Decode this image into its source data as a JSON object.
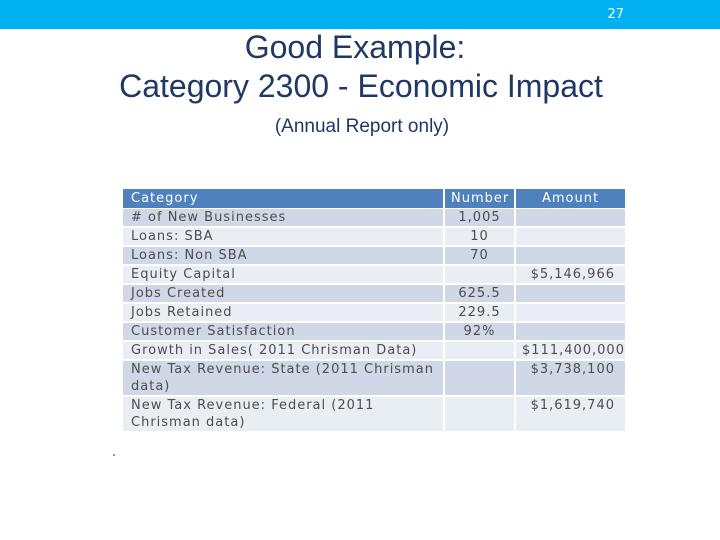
{
  "slide_number": "27",
  "title_line1": "Good Example:",
  "title_line2": "Category 2300 - Economic Impact",
  "subtitle": "(Annual Report only)",
  "table": {
    "headers": [
      "Category",
      "Number",
      "Amount"
    ],
    "rows": [
      [
        "# of New Businesses",
        "1,005",
        ""
      ],
      [
        "Loans: SBA",
        "10",
        ""
      ],
      [
        "Loans: Non SBA",
        "70",
        ""
      ],
      [
        "Equity Capital",
        "",
        "$5,146,966"
      ],
      [
        "Jobs Created",
        "625.5",
        ""
      ],
      [
        "Jobs Retained",
        "229.5",
        ""
      ],
      [
        "Customer Satisfaction",
        "92%",
        ""
      ],
      [
        "Growth in Sales( 2011 Chrisman Data)",
        "",
        "$111,400,000"
      ],
      [
        "New Tax Revenue: State (2011 Chrisman data)",
        "",
        "$3,738,100"
      ],
      [
        "New Tax Revenue: Federal (2011 Chrisman data)",
        "",
        "$1,619,740"
      ]
    ]
  },
  "colors": {
    "topbar": "#00b0f0",
    "header": "#4f81bd",
    "row_a": "#d0d8e8",
    "row_b": "#e9edf4",
    "title": "#1f3864"
  }
}
